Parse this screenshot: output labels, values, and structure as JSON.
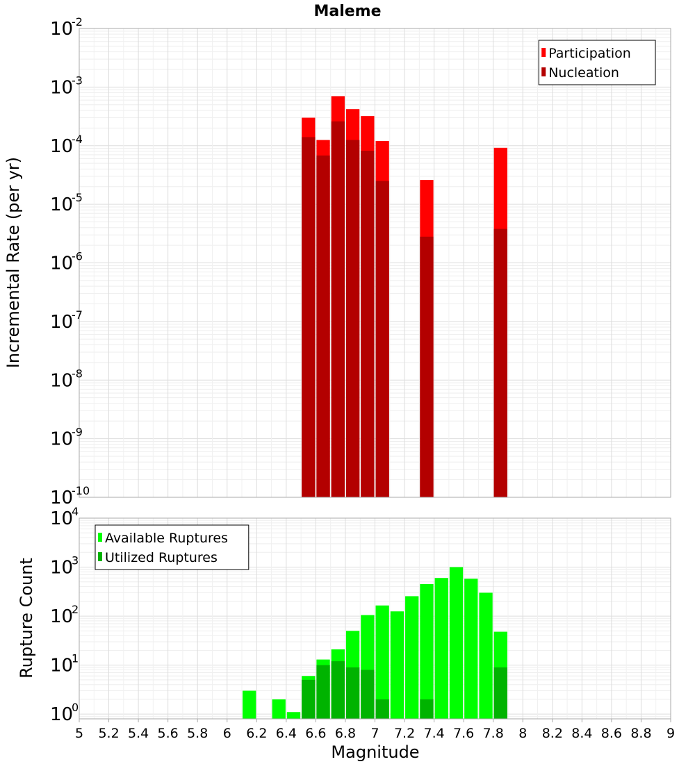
{
  "chart_data": [
    {
      "type": "bar",
      "title": "Maleme",
      "ylabel": "Incremental Rate (per yr)",
      "xlabel": "",
      "y_scale": "log",
      "ylim": [
        1e-10,
        0.01
      ],
      "y_ticks": [
        {
          "base": "10",
          "exp": "-10"
        },
        {
          "base": "10",
          "exp": "-9"
        },
        {
          "base": "10",
          "exp": "-8"
        },
        {
          "base": "10",
          "exp": "-7"
        },
        {
          "base": "10",
          "exp": "-6"
        },
        {
          "base": "10",
          "exp": "-5"
        },
        {
          "base": "10",
          "exp": "-4"
        },
        {
          "base": "10",
          "exp": "-3"
        },
        {
          "base": "10",
          "exp": "-2"
        }
      ],
      "xlim": [
        5,
        9
      ],
      "bar_width": 0.1,
      "grid": true,
      "legend_position": "top-right",
      "series": [
        {
          "name": "Participation",
          "color": "#ff0000",
          "x": [
            6.55,
            6.65,
            6.75,
            6.85,
            6.95,
            7.05,
            7.35,
            7.85
          ],
          "values": [
            0.0003,
            0.000125,
            0.0007,
            0.00042,
            0.00032,
            0.00012,
            2.6e-05,
            9.2e-05
          ]
        },
        {
          "name": "Nucleation",
          "color": "#b30000",
          "x": [
            6.55,
            6.65,
            6.75,
            6.85,
            6.95,
            7.05,
            7.35,
            7.85
          ],
          "values": [
            0.00014,
            6.8e-05,
            0.00026,
            0.000125,
            8.2e-05,
            2.5e-05,
            2.8e-06,
            3.8e-06
          ]
        }
      ]
    },
    {
      "type": "bar",
      "title": "",
      "ylabel": "Rupture Count",
      "xlabel": "Magnitude",
      "y_scale": "log",
      "ylim": [
        0.8,
        10000
      ],
      "y_ticks": [
        {
          "base": "10",
          "exp": "0"
        },
        {
          "base": "10",
          "exp": "1"
        },
        {
          "base": "10",
          "exp": "2"
        },
        {
          "base": "10",
          "exp": "3"
        },
        {
          "base": "10",
          "exp": "4"
        }
      ],
      "xlim": [
        5,
        9
      ],
      "x_ticks": [
        "5",
        "5.2",
        "5.4",
        "5.6",
        "5.8",
        "6",
        "6.2",
        "6.4",
        "6.6",
        "6.8",
        "7",
        "7.2",
        "7.4",
        "7.6",
        "7.8",
        "8",
        "8.2",
        "8.4",
        "8.6",
        "8.8",
        "9"
      ],
      "bar_width": 0.1,
      "grid": true,
      "legend_position": "top-left",
      "series": [
        {
          "name": "Available Ruptures",
          "color": "#00ff00",
          "x": [
            6.15,
            6.35,
            6.45,
            6.55,
            6.65,
            6.75,
            6.85,
            6.95,
            7.05,
            7.15,
            7.25,
            7.35,
            7.45,
            7.55,
            7.65,
            7.75,
            7.85
          ],
          "values": [
            3,
            2,
            1.1,
            6,
            13,
            21,
            50,
            105,
            165,
            125,
            255,
            450,
            600,
            1000,
            580,
            300,
            48
          ]
        },
        {
          "name": "Utilized Ruptures",
          "color": "#00b300",
          "x": [
            6.55,
            6.65,
            6.75,
            6.85,
            6.95,
            7.05,
            7.35,
            7.85
          ],
          "values": [
            5,
            10,
            12,
            9,
            8,
            2,
            2,
            9
          ]
        }
      ]
    }
  ]
}
